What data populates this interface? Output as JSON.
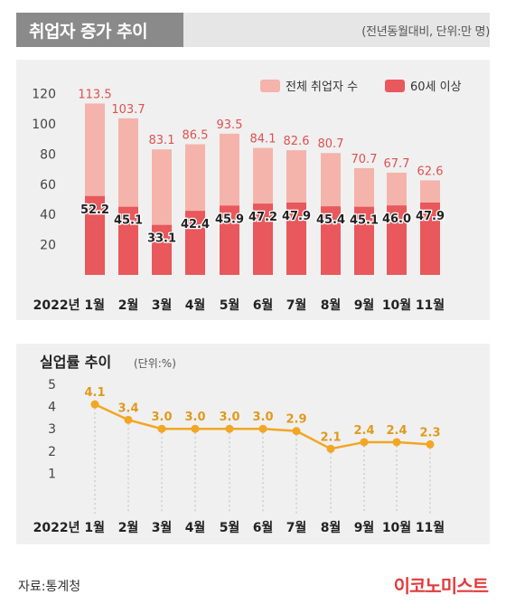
{
  "header": {
    "title": "취업자 증가 추이",
    "unit": "(전년동월대비, 단위:만 명)"
  },
  "source": "자료:통계청",
  "brand": "이코노미스트",
  "chart_data": [
    {
      "type": "bar",
      "categories": [
        "2022년 1월",
        "2월",
        "3월",
        "4월",
        "5월",
        "6월",
        "7월",
        "8월",
        "9월",
        "10월",
        "11월"
      ],
      "series": [
        {
          "name": "전체 취업자 수",
          "values": [
            113.5,
            103.7,
            83.1,
            86.5,
            93.5,
            84.1,
            82.6,
            80.7,
            70.7,
            67.7,
            62.6
          ],
          "color": "#f4b4ab"
        },
        {
          "name": "60세 이상",
          "values": [
            52.2,
            45.1,
            33.1,
            42.4,
            45.9,
            47.2,
            47.9,
            45.4,
            45.1,
            46.0,
            47.9
          ],
          "color": "#e8585c"
        }
      ],
      "value_labels_total": [
        "113.5",
        "103.7",
        "83.1",
        "86.5",
        "93.5",
        "84.1",
        "82.6",
        "80.7",
        "70.7",
        "67.7",
        "62.6"
      ],
      "value_labels_60": [
        "52.2",
        "45.1",
        "33.1",
        "42.4",
        "45.9",
        "47.2",
        "47.9",
        "45.4",
        "45.1",
        "46.0",
        "47.9"
      ],
      "yticks": [
        "120",
        "100",
        "80",
        "60",
        "40",
        "20"
      ],
      "ylim": [
        0,
        120
      ],
      "legend_placement": "top-right"
    },
    {
      "type": "line",
      "title": "실업률 추이",
      "unit": "(단위:%)",
      "categories": [
        "2022년 1월",
        "2월",
        "3월",
        "4월",
        "5월",
        "6월",
        "7월",
        "8월",
        "9월",
        "10월",
        "11월"
      ],
      "values": [
        4.1,
        3.4,
        3.0,
        3.0,
        3.0,
        3.0,
        2.9,
        2.1,
        2.4,
        2.4,
        2.3
      ],
      "value_labels": [
        "4.1",
        "3.4",
        "3.0",
        "3.0",
        "3.0",
        "3.0",
        "2.9",
        "2.1",
        "2.4",
        "2.4",
        "2.3"
      ],
      "yticks": [
        "5",
        "4",
        "3",
        "2",
        "1"
      ],
      "ylim": [
        0,
        5
      ],
      "color": "#f2a623"
    }
  ]
}
